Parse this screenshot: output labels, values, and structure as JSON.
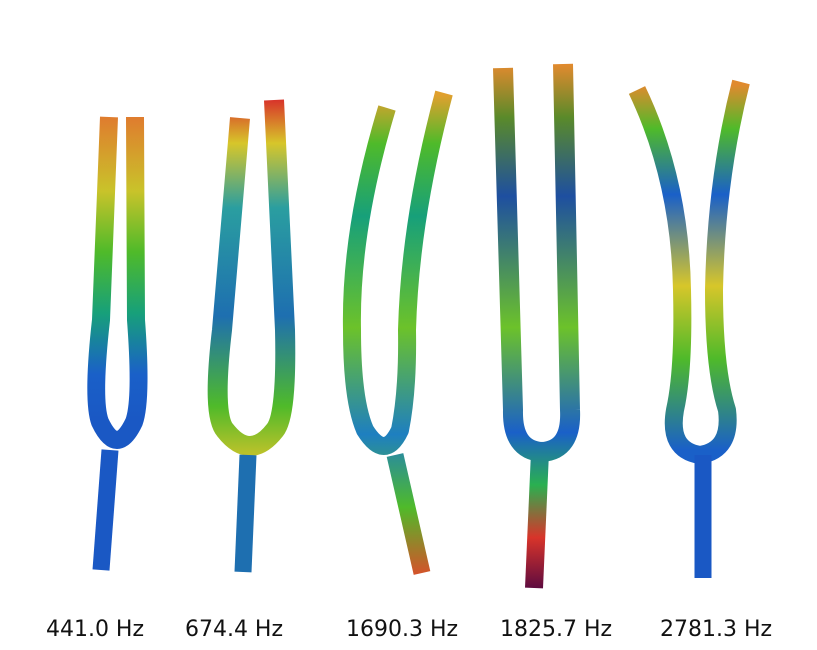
{
  "labels": [
    "441.0 Hz",
    "674.4 Hz",
    "1690.3 Hz",
    "1825.7 Hz",
    "2781.3 Hz"
  ]
}
